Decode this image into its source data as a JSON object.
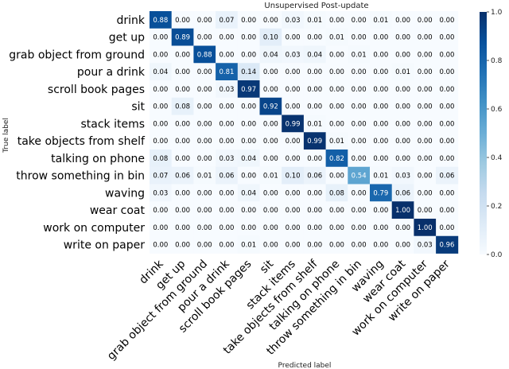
{
  "chart_data": {
    "type": "heatmap",
    "title": "Unsupervised Post-update",
    "xlabel": "Predicted label",
    "ylabel": "True label",
    "labels": [
      "drink",
      "get up",
      "grab object from ground",
      "pour a drink",
      "scroll book pages",
      "sit",
      "stack items",
      "take objects from shelf",
      "talking on phone",
      "throw something in bin",
      "waving",
      "wear coat",
      "work on computer",
      "write on paper"
    ],
    "matrix": [
      [
        0.88,
        0.0,
        0.0,
        0.07,
        0.0,
        0.0,
        0.03,
        0.01,
        0.0,
        0.0,
        0.01,
        0.0,
        0.0,
        0.0
      ],
      [
        0.0,
        0.89,
        0.0,
        0.0,
        0.0,
        0.1,
        0.0,
        0.0,
        0.01,
        0.0,
        0.0,
        0.0,
        0.0,
        0.0
      ],
      [
        0.0,
        0.0,
        0.88,
        0.0,
        0.0,
        0.04,
        0.03,
        0.04,
        0.0,
        0.01,
        0.0,
        0.0,
        0.0,
        0.0
      ],
      [
        0.04,
        0.0,
        0.0,
        0.81,
        0.14,
        0.0,
        0.0,
        0.0,
        0.0,
        0.0,
        0.0,
        0.01,
        0.0,
        0.0
      ],
      [
        0.0,
        0.0,
        0.0,
        0.03,
        0.97,
        0.0,
        0.0,
        0.0,
        0.0,
        0.0,
        0.0,
        0.0,
        0.0,
        0.0
      ],
      [
        0.0,
        0.08,
        0.0,
        0.0,
        0.0,
        0.92,
        0.0,
        0.0,
        0.0,
        0.0,
        0.0,
        0.0,
        0.0,
        0.0
      ],
      [
        0.0,
        0.0,
        0.0,
        0.0,
        0.0,
        0.0,
        0.99,
        0.01,
        0.0,
        0.0,
        0.0,
        0.0,
        0.0,
        0.0
      ],
      [
        0.0,
        0.0,
        0.0,
        0.0,
        0.0,
        0.0,
        0.0,
        0.99,
        0.01,
        0.0,
        0.0,
        0.0,
        0.0,
        0.0
      ],
      [
        0.08,
        0.0,
        0.0,
        0.03,
        0.04,
        0.0,
        0.0,
        0.0,
        0.82,
        0.0,
        0.0,
        0.0,
        0.0,
        0.0
      ],
      [
        0.07,
        0.06,
        0.01,
        0.06,
        0.0,
        0.01,
        0.1,
        0.06,
        0.0,
        0.54,
        0.01,
        0.03,
        0.0,
        0.06
      ],
      [
        0.03,
        0.0,
        0.0,
        0.0,
        0.04,
        0.0,
        0.0,
        0.0,
        0.08,
        0.0,
        0.79,
        0.06,
        0.0,
        0.0
      ],
      [
        0.0,
        0.0,
        0.0,
        0.0,
        0.0,
        0.0,
        0.0,
        0.0,
        0.0,
        0.0,
        0.0,
        1.0,
        0.0,
        0.0
      ],
      [
        0.0,
        0.0,
        0.0,
        0.0,
        0.0,
        0.0,
        0.0,
        0.0,
        0.0,
        0.0,
        0.0,
        0.0,
        1.0,
        0.0
      ],
      [
        0.0,
        0.0,
        0.0,
        0.0,
        0.01,
        0.0,
        0.0,
        0.0,
        0.0,
        0.0,
        0.0,
        0.0,
        0.03,
        0.96
      ]
    ],
    "value_range": [
      0,
      1
    ],
    "colorbar_ticks": [
      "0.0",
      "0.2",
      "0.4",
      "0.6",
      "0.8",
      "1.0"
    ],
    "colormap": {
      "low": "#f7fbff",
      "high": "#08306b"
    },
    "grid": false,
    "legend": "colorbar-right"
  }
}
